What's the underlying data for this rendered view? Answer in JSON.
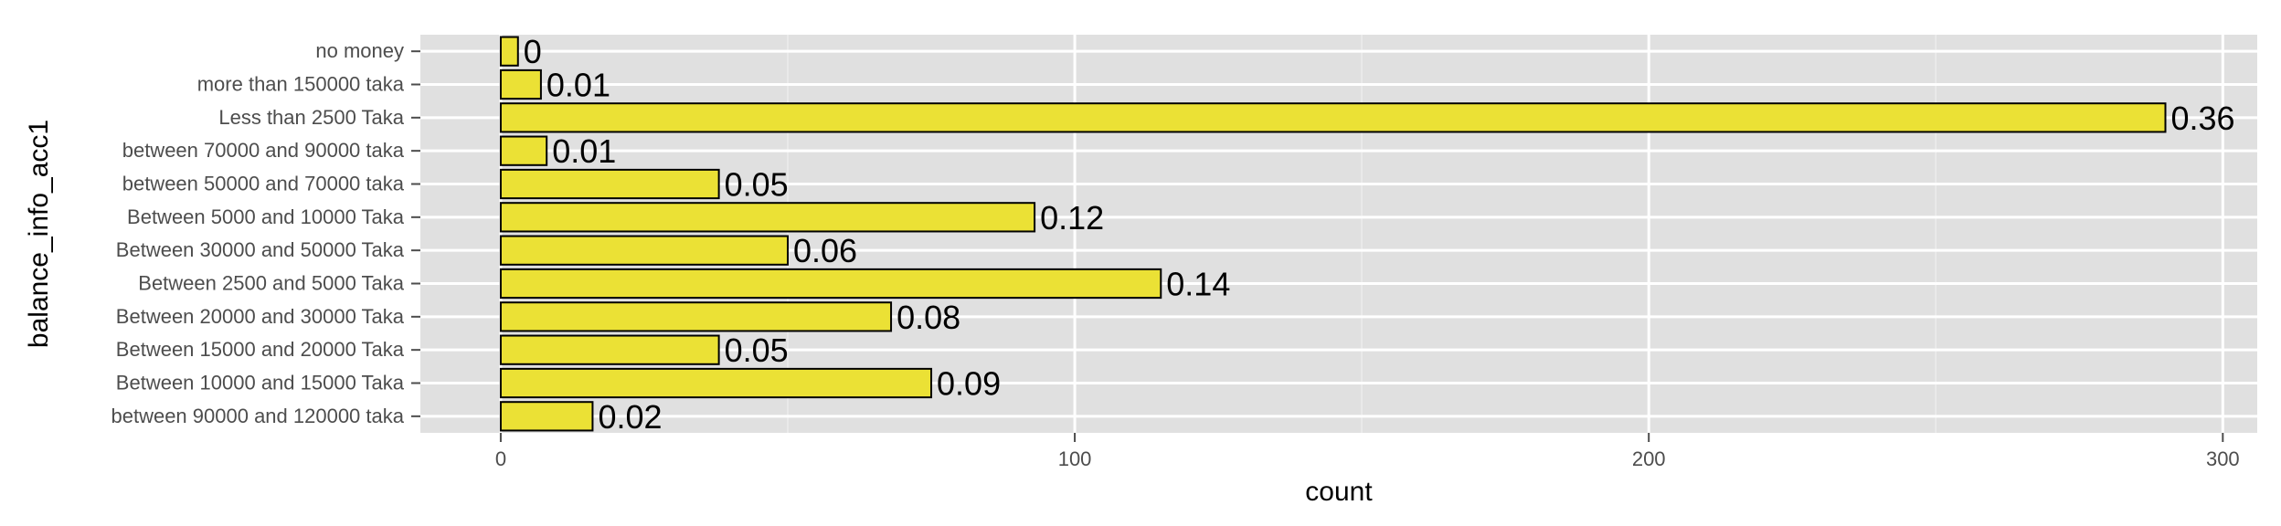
{
  "chart_data": {
    "type": "bar",
    "orientation": "horizontal",
    "xlabel": "count",
    "ylabel": "balance_info_acc1",
    "xlim": [
      -14,
      306
    ],
    "x_ticks": [
      0,
      100,
      200,
      300
    ],
    "x_tick_labels": [
      "0",
      "100",
      "200",
      "300"
    ],
    "grid": true,
    "categories": [
      "no money",
      "more than 150000 taka",
      "Less than 2500 Taka",
      "between 70000 and 90000 taka",
      "between 50000 and 70000 taka",
      "Between 5000 and 10000 Taka",
      "Between 30000 and 50000 Taka",
      "Between 2500 and 5000 Taka",
      "Between 20000 and 30000 Taka",
      "Between 15000 and 20000 Taka",
      "Between 10000 and 15000 Taka",
      "between 90000 and 120000 taka"
    ],
    "values": [
      3,
      7,
      290,
      8,
      38,
      93,
      50,
      115,
      68,
      38,
      75,
      16
    ],
    "labels": [
      "0",
      "0.01",
      "0.36",
      "0.01",
      "0.05",
      "0.12",
      "0.06",
      "0.14",
      "0.08",
      "0.05",
      "0.09",
      "0.02"
    ],
    "colors": {
      "bar_fill": "#ebe135",
      "bar_stroke": "#000000",
      "panel_background": "#e0e0e0",
      "major_grid": "#ffffff",
      "minor_grid": "#ececec"
    }
  }
}
